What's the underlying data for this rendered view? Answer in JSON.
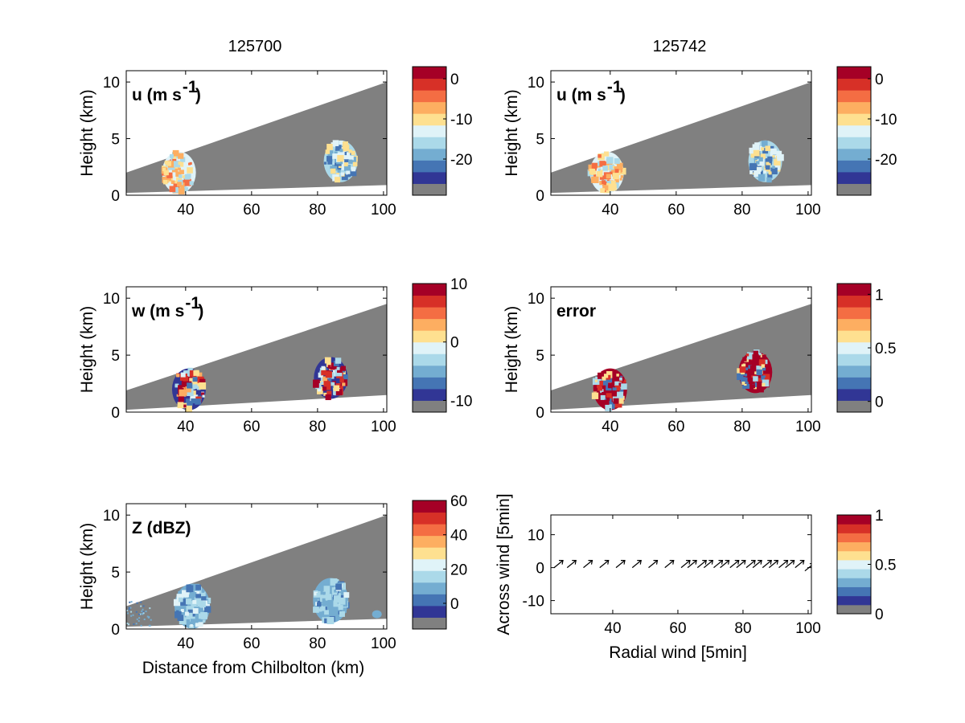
{
  "figure": {
    "col_titles": [
      "125700",
      "125742"
    ],
    "grey": "#808080",
    "scale_colors": [
      "#313695",
      "#4575b4",
      "#74add1",
      "#abd9e9",
      "#e0f3f8",
      "#fee090",
      "#fdae61",
      "#f46d43",
      "#d73027",
      "#a50026"
    ]
  },
  "chart_data": [
    {
      "id": "u-125700",
      "type": "heatmap",
      "panel_label": "u (m s",
      "panel_label_sup": "-1",
      "ylabel": "Height (km)",
      "xlabel": "",
      "xlim": [
        22,
        101
      ],
      "ylim": [
        0,
        11
      ],
      "xticks": [
        40,
        60,
        80,
        100
      ],
      "yticks": [
        0,
        5,
        10
      ],
      "beam_top_km": [
        2.0,
        10.0
      ],
      "beam_bottom_km": [
        0.2,
        0.9
      ],
      "colorbar": {
        "ticks": [
          0,
          -10,
          -20
        ],
        "range": [
          -29,
          3
        ]
      },
      "cells": [
        {
          "x": 38,
          "z": 2.0,
          "value": -10,
          "kind": "warm"
        },
        {
          "x": 87,
          "z": 3.0,
          "value": -18,
          "kind": "cool"
        }
      ]
    },
    {
      "id": "u-125742",
      "type": "heatmap",
      "panel_label": "u (m s",
      "panel_label_sup": "-1",
      "ylabel": "Height (km)",
      "xlabel": "",
      "xlim": [
        22,
        101
      ],
      "ylim": [
        0,
        11
      ],
      "xticks": [
        40,
        60,
        80,
        100
      ],
      "yticks": [
        0,
        5,
        10
      ],
      "beam_top_km": [
        2.0,
        10.0
      ],
      "beam_bottom_km": [
        0.2,
        0.9
      ],
      "colorbar": {
        "ticks": [
          0,
          -10,
          -20
        ],
        "range": [
          -29,
          3
        ]
      },
      "cells": [
        {
          "x": 39,
          "z": 2.0,
          "value": -10,
          "kind": "warm"
        },
        {
          "x": 87,
          "z": 3.0,
          "value": -18,
          "kind": "cool"
        }
      ]
    },
    {
      "id": "w-125700",
      "type": "heatmap",
      "panel_label": "w (m s",
      "panel_label_sup": "-1",
      "ylabel": "Height (km)",
      "xlabel": "",
      "xlim": [
        22,
        101
      ],
      "ylim": [
        0,
        11
      ],
      "xticks": [
        40,
        60,
        80,
        100
      ],
      "yticks": [
        0,
        5,
        10
      ],
      "beam_top_km": [
        1.9,
        9.5
      ],
      "beam_bottom_km": [
        0.2,
        1.5
      ],
      "colorbar": {
        "ticks": [
          10,
          0,
          -10
        ],
        "range": [
          -12,
          10
        ]
      },
      "cells": [
        {
          "x": 41,
          "z": 2.0,
          "value": 5,
          "kind": "mixed"
        },
        {
          "x": 84,
          "z": 3.0,
          "value": -8,
          "kind": "mixed"
        }
      ]
    },
    {
      "id": "error-125742",
      "type": "heatmap",
      "panel_label": "error",
      "panel_label_sup": "",
      "ylabel": "Height (km)",
      "xlabel": "",
      "xlim": [
        22,
        101
      ],
      "ylim": [
        0,
        11
      ],
      "xticks": [
        40,
        60,
        80,
        100
      ],
      "yticks": [
        0,
        5,
        10
      ],
      "beam_top_km": [
        1.9,
        9.5
      ],
      "beam_bottom_km": [
        0.2,
        1.5
      ],
      "colorbar": {
        "ticks": [
          1,
          0.5,
          0
        ],
        "range": [
          -0.1,
          1.1
        ]
      },
      "cells": [
        {
          "x": 40,
          "z": 2.0,
          "value": 1,
          "kind": "error"
        },
        {
          "x": 84,
          "z": 3.5,
          "value": 1,
          "kind": "error"
        }
      ]
    },
    {
      "id": "z-125700",
      "type": "heatmap",
      "panel_label": "Z (dBZ)",
      "panel_label_sup": "",
      "ylabel": "Height (km)",
      "xlabel": "Distance from Chilbolton (km)",
      "xlim": [
        22,
        101
      ],
      "ylim": [
        0,
        11
      ],
      "xticks": [
        40,
        60,
        80,
        100
      ],
      "yticks": [
        0,
        5,
        10
      ],
      "beam_top_km": [
        2.0,
        10.0
      ],
      "beam_bottom_km": [
        0.2,
        0.9
      ],
      "colorbar": {
        "ticks": [
          60,
          40,
          20,
          0
        ],
        "range": [
          -15,
          60
        ]
      },
      "cells": [
        {
          "x": 42,
          "z": 2.0,
          "value": 20,
          "kind": "refl"
        },
        {
          "x": 84,
          "z": 2.5,
          "value": 18,
          "kind": "refl"
        }
      ]
    },
    {
      "id": "wind-vectors",
      "type": "scatter",
      "panel_label": "",
      "panel_label_sup": "",
      "ylabel": "Across wind [5min]",
      "xlabel": "Radial wind [5min]",
      "xlim": [
        21,
        101
      ],
      "ylim": [
        -14,
        16
      ],
      "xticks": [
        40,
        60,
        80,
        100
      ],
      "yticks": [
        10,
        0,
        -10
      ],
      "colorbar": {
        "ticks": [
          1,
          0.5,
          0
        ],
        "range": [
          0,
          1
        ]
      },
      "arrows_x": [
        22,
        26,
        31,
        36,
        41,
        46,
        51,
        56,
        61,
        63,
        66,
        68,
        71,
        73,
        76,
        78,
        81,
        83,
        86,
        88,
        91,
        93,
        96,
        99
      ],
      "arrows_y": [
        2,
        2,
        2,
        2,
        2,
        2,
        2,
        2,
        2,
        2,
        2,
        2,
        2,
        2,
        2,
        2,
        2,
        2,
        2,
        2,
        2,
        2,
        2,
        1
      ]
    }
  ]
}
